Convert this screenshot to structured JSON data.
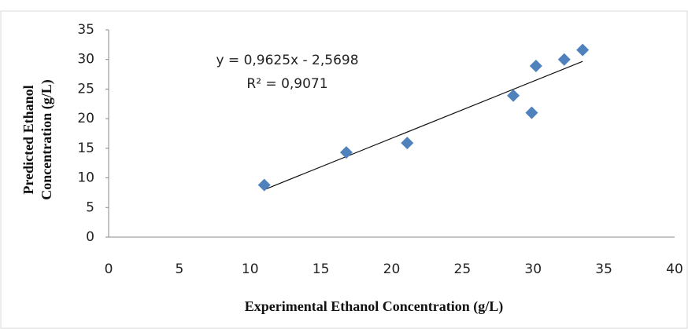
{
  "chart_data": {
    "type": "scatter",
    "xlabel": "Experimental Ethanol Concentration (g/L)",
    "ylabel": [
      "Predicted Ethanol",
      "Concentration (g/L)"
    ],
    "series": [
      {
        "color": "#4f81bd",
        "x": [
          11,
          16.8,
          21.1,
          28.6,
          29.9,
          30.2,
          32.2,
          33.5
        ],
        "values": [
          8.8,
          14.3,
          15.9,
          23.9,
          21.0,
          28.9,
          30.0,
          31.6
        ]
      }
    ],
    "trendline": {
      "slope": 0.9625,
      "intercept": -2.5698,
      "equation": "y = 0,9625x - 2,5698",
      "r2": "R² = 0,9071"
    },
    "xlim": [
      0,
      40
    ],
    "xticks": [
      0,
      5,
      10,
      15,
      20,
      25,
      30,
      35,
      40
    ],
    "ylim": [
      0,
      35
    ],
    "yticks": [
      0,
      5,
      10,
      15,
      20,
      25,
      30,
      35
    ],
    "grid": false
  }
}
